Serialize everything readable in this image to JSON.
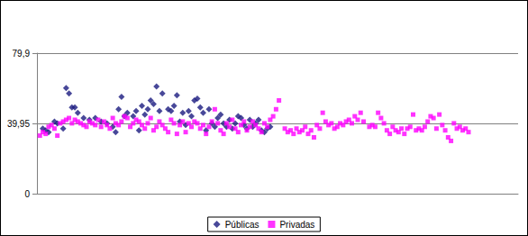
{
  "chart_data": {
    "type": "scatter",
    "xlim": [
      0,
      165
    ],
    "ylim": [
      0,
      79.9
    ],
    "yticks": [
      0,
      {
        "value": 39.95,
        "label": "39,95"
      },
      {
        "value": 79.9,
        "label": "79,9"
      }
    ],
    "grid": true,
    "legend": "bottom",
    "tick_labels": "y",
    "series": [
      {
        "name": "Públicas",
        "color": "#1a1a80",
        "marker": "diamond",
        "x": [
          2,
          3,
          4,
          6,
          7,
          9,
          10,
          11,
          12,
          13,
          14,
          16,
          18,
          20,
          22,
          24,
          26,
          27,
          28,
          29,
          30,
          31,
          33,
          34,
          35,
          36,
          37,
          38,
          39,
          40,
          41,
          42,
          43,
          45,
          46,
          47,
          48,
          49,
          50,
          51,
          52,
          53,
          54,
          55,
          56,
          57,
          58,
          59,
          60,
          61,
          62,
          63,
          64,
          65,
          66,
          67,
          68,
          69,
          70,
          71,
          72,
          73,
          74,
          75,
          76,
          77,
          78,
          79,
          80
        ],
        "values": [
          37,
          36,
          35,
          41,
          40,
          37,
          60,
          57,
          49,
          49,
          46,
          43,
          42,
          43,
          41,
          40,
          38,
          35,
          48,
          55,
          44,
          46,
          44,
          47,
          36,
          50,
          45,
          48,
          53,
          51,
          61,
          47,
          57,
          48,
          47,
          50,
          56,
          41,
          46,
          39,
          47,
          44,
          53,
          54,
          49,
          46,
          36,
          48,
          40,
          38,
          43,
          45,
          40,
          38,
          42,
          37,
          40,
          44,
          43,
          39,
          37,
          42,
          38,
          40,
          42,
          36,
          35,
          37,
          38
        ]
      },
      {
        "name": "Privadas",
        "color": "#ff00ff",
        "marker": "square",
        "x": [
          1,
          2,
          3,
          4,
          5,
          6,
          7,
          8,
          9,
          10,
          11,
          12,
          13,
          14,
          15,
          16,
          17,
          18,
          19,
          20,
          21,
          22,
          23,
          24,
          25,
          26,
          27,
          28,
          29,
          30,
          31,
          32,
          33,
          34,
          35,
          36,
          37,
          38,
          39,
          40,
          41,
          42,
          43,
          44,
          45,
          46,
          47,
          48,
          49,
          50,
          51,
          52,
          53,
          54,
          55,
          56,
          57,
          58,
          59,
          60,
          61,
          62,
          63,
          64,
          65,
          66,
          67,
          68,
          69,
          70,
          71,
          72,
          73,
          74,
          75,
          76,
          77,
          78,
          79,
          80,
          81,
          82,
          83,
          85,
          86,
          87,
          88,
          89,
          90,
          91,
          92,
          93,
          94,
          95,
          96,
          97,
          98,
          99,
          100,
          101,
          102,
          103,
          104,
          105,
          106,
          107,
          108,
          109,
          110,
          111,
          112,
          114,
          115,
          116,
          117,
          118,
          119,
          120,
          121,
          122,
          123,
          124,
          125,
          126,
          127,
          128,
          129,
          130,
          131,
          132,
          133,
          134,
          135,
          136,
          137,
          138,
          139,
          140,
          141,
          142,
          143,
          144,
          145,
          146,
          147,
          148
        ],
        "values": [
          33,
          35,
          34,
          38,
          39,
          37,
          33,
          40,
          41,
          42,
          43,
          40,
          42,
          41,
          40,
          39,
          38,
          41,
          40,
          39,
          42,
          38,
          41,
          39,
          37,
          43,
          40,
          39,
          41,
          44,
          43,
          38,
          40,
          42,
          41,
          39,
          37,
          40,
          43,
          36,
          38,
          41,
          39,
          37,
          35,
          42,
          40,
          34,
          39,
          41,
          35,
          40,
          38,
          41,
          40,
          37,
          39,
          34,
          38,
          41,
          48,
          40,
          36,
          34,
          40,
          38,
          42,
          37,
          35,
          39,
          41,
          36,
          38,
          41,
          39,
          37,
          35,
          40,
          38,
          42,
          44,
          48,
          53,
          37,
          35,
          36,
          34,
          37,
          35,
          36,
          38,
          34,
          36,
          32,
          39,
          37,
          46,
          41,
          39,
          40,
          37,
          38,
          40,
          39,
          41,
          42,
          40,
          44,
          42,
          46,
          41,
          38,
          39,
          38,
          46,
          43,
          40,
          36,
          34,
          38,
          36,
          35,
          37,
          34,
          37,
          38,
          45,
          36,
          37,
          36,
          38,
          41,
          44,
          43,
          37,
          45,
          39,
          36,
          32,
          30,
          40,
          37,
          38,
          36,
          37,
          35
        ]
      }
    ]
  }
}
